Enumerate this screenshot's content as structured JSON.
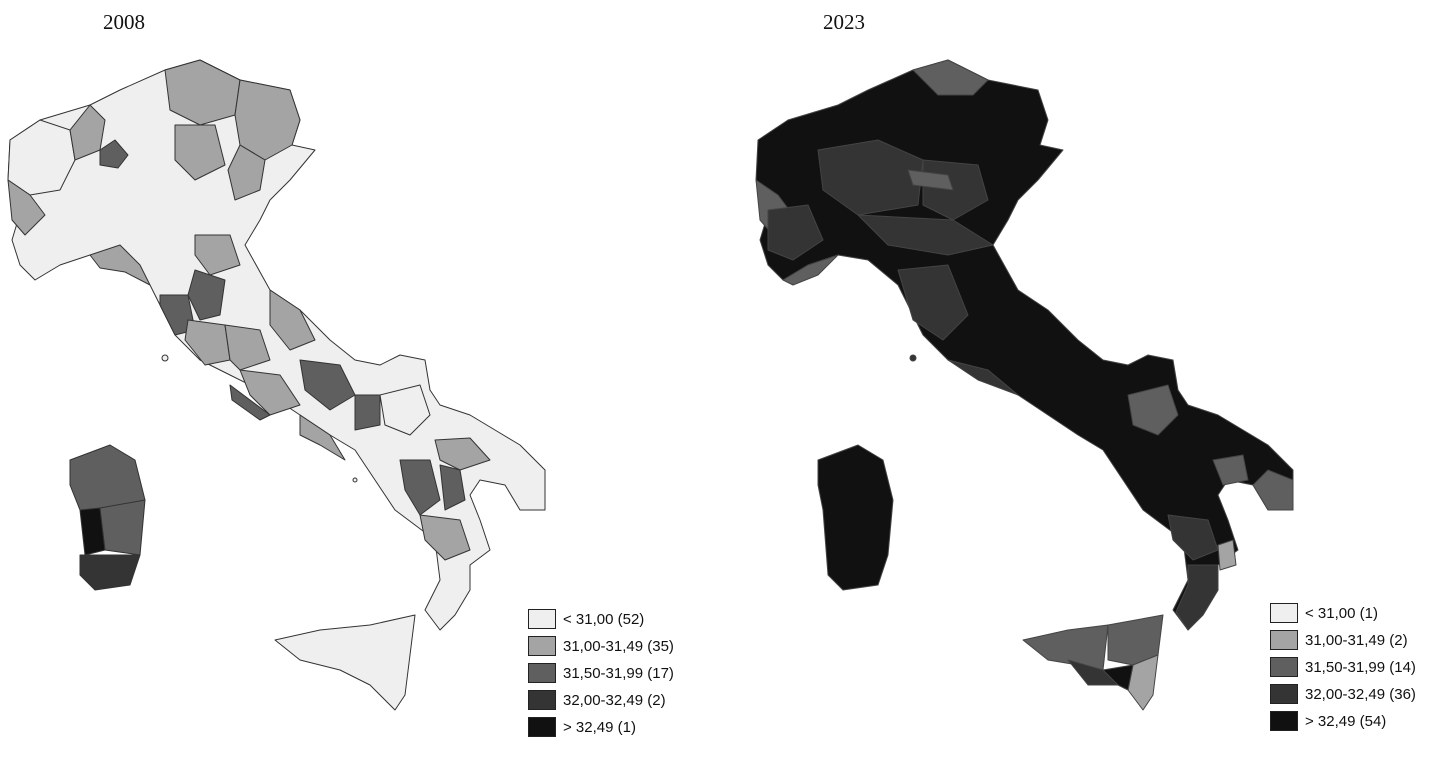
{
  "maps": [
    {
      "year": "2008",
      "legend": [
        {
          "label": "< 31,00 (52)",
          "color": "#efefef"
        },
        {
          "label": "31,00-31,49 (35)",
          "color": "#a4a4a4"
        },
        {
          "label": "31,50-31,99 (17)",
          "color": "#5f5f5f"
        },
        {
          "label": "32,00-32,49 (2)",
          "color": "#343434"
        },
        {
          "label": "> 32,49 (1)",
          "color": "#111111"
        }
      ]
    },
    {
      "year": "2023",
      "legend": [
        {
          "label": "< 31,00 (1)",
          "color": "#efefef"
        },
        {
          "label": "31,00-31,49 (2)",
          "color": "#a4a4a4"
        },
        {
          "label": "31,50-31,99 (14)",
          "color": "#5f5f5f"
        },
        {
          "label": "32,00-32,49 (36)",
          "color": "#343434"
        },
        {
          "label": "> 32,49 (54)",
          "color": "#111111"
        }
      ]
    }
  ]
}
